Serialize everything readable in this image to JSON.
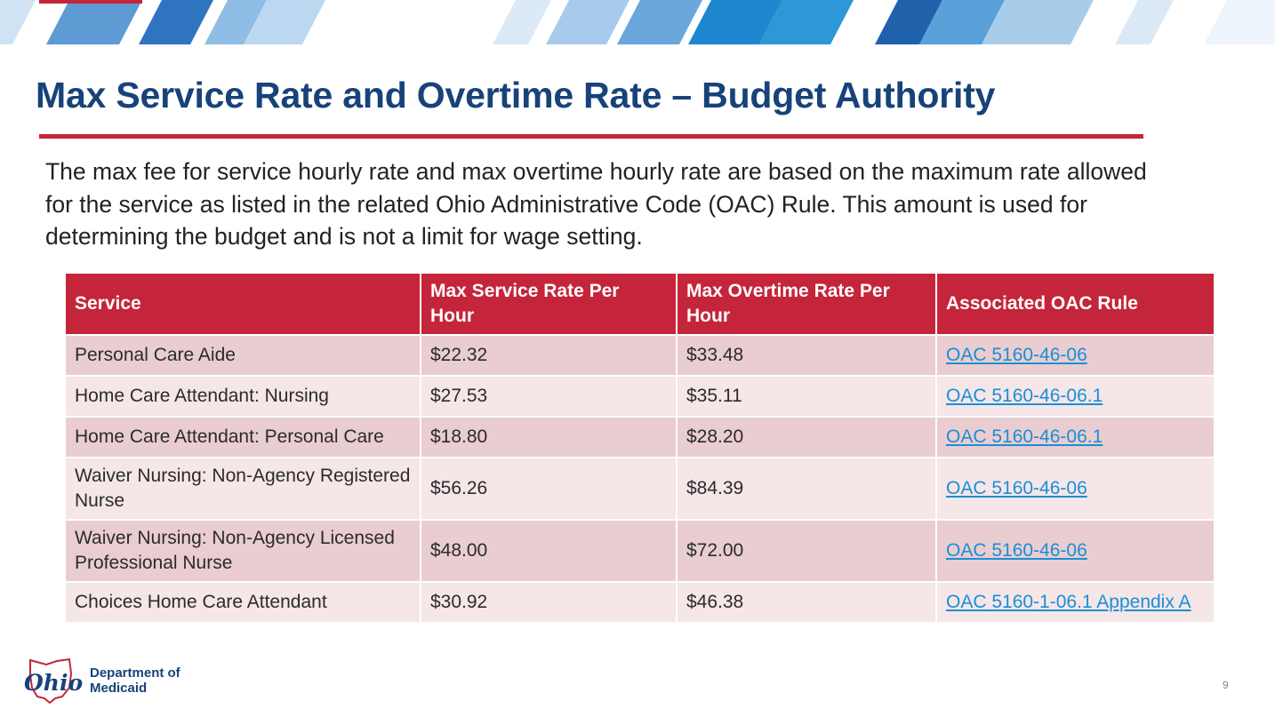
{
  "slide": {
    "title": "Max Service Rate and Overtime Rate – Budget Authority",
    "intro": "The max fee for service hourly rate and max overtime hourly rate are based on the maximum rate allowed for the service as listed in the related Ohio Administrative Code (OAC) Rule. This amount is used for determining the budget and is not a limit for wage setting.",
    "page_number": "9"
  },
  "table": {
    "headers": [
      "Service",
      "Max Service Rate Per Hour",
      "Max Overtime Rate Per Hour",
      "Associated OAC Rule"
    ],
    "rows": [
      {
        "service": "Personal Care Aide",
        "rate": "$22.32",
        "overtime": "$33.48",
        "rule": "OAC 5160-46-06"
      },
      {
        "service": "Home Care Attendant: Nursing",
        "rate": "$27.53",
        "overtime": "$35.11",
        "rule": "OAC 5160-46-06.1"
      },
      {
        "service": "Home Care Attendant: Personal Care",
        "rate": "$18.80",
        "overtime": "$28.20",
        "rule": "OAC 5160-46-06.1"
      },
      {
        "service": "Waiver Nursing: Non-Agency Registered Nurse",
        "rate": "$56.26",
        "overtime": "$84.39",
        "rule": "OAC 5160-46-06"
      },
      {
        "service": "Waiver Nursing: Non-Agency Licensed Professional Nurse",
        "rate": "$48.00",
        "overtime": "$72.00",
        "rule": "OAC 5160-46-06"
      },
      {
        "service": "Choices Home Care Attendant",
        "rate": "$30.92",
        "overtime": "$46.38",
        "rule": "OAC 5160-1-06.1 Appendix A"
      }
    ]
  },
  "logo": {
    "wordmark": "Ohio",
    "department_line1": "Department of",
    "department_line2": "Medicaid"
  },
  "colors": {
    "title": "#17427a",
    "accent_red": "#c4253a",
    "row_dark": "#e9cdd0",
    "row_light": "#f5e6e8",
    "link": "#1a8fd6"
  }
}
